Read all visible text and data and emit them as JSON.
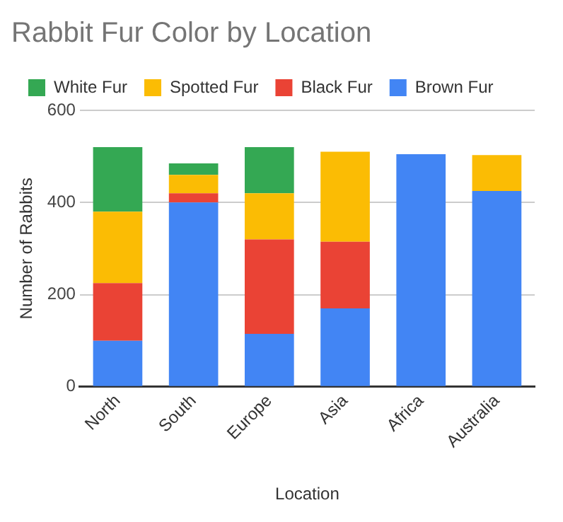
{
  "chart_data": {
    "type": "bar",
    "stacked": true,
    "title": "Rabbit Fur Color by Location",
    "xlabel": "Location",
    "ylabel": "Number of Rabbits",
    "categories": [
      "North",
      "South",
      "Europe",
      "Asia",
      "Africa",
      "Australia"
    ],
    "series": [
      {
        "name": "Brown Fur",
        "color": "#4285f4",
        "values": [
          100,
          400,
          115,
          170,
          505,
          425
        ]
      },
      {
        "name": "Black Fur",
        "color": "#ea4335",
        "values": [
          125,
          20,
          205,
          145,
          0,
          0
        ]
      },
      {
        "name": "Spotted Fur",
        "color": "#fbbc04",
        "values": [
          155,
          40,
          100,
          195,
          0,
          78
        ]
      },
      {
        "name": "White Fur",
        "color": "#34a853",
        "values": [
          140,
          25,
          100,
          0,
          0,
          0
        ]
      }
    ],
    "ylim": [
      0,
      600
    ],
    "yticks": [
      0,
      200,
      400,
      600
    ],
    "grid": "y",
    "legend": "top"
  }
}
